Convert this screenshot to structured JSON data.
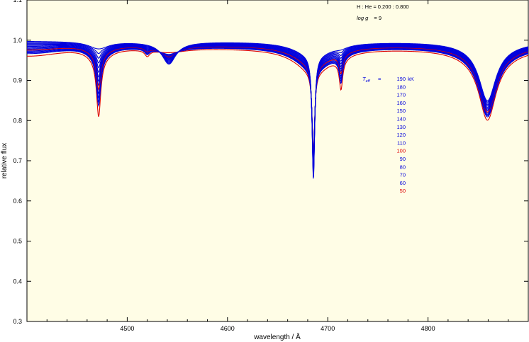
{
  "chart_data": {
    "type": "line",
    "xlabel": "wavelength / Å",
    "ylabel": "relative flux",
    "xlim": [
      4400,
      4900
    ],
    "ylim": [
      0.3,
      1.1
    ],
    "x_ticks": [
      4500,
      4600,
      4700,
      4800
    ],
    "y_ticks": [
      0.3,
      0.4,
      0.5,
      0.6,
      0.7,
      0.8,
      0.9,
      1.0,
      1.1
    ],
    "x_tick_labels": [
      "4500",
      "4600",
      "4700",
      "4800"
    ],
    "y_tick_labels": [
      "0.3",
      "0.4",
      "0.5",
      "0.6",
      "0.7",
      "0.8",
      "0.9",
      "1.0",
      "1.1"
    ],
    "grid": false,
    "background": "#fffde6",
    "annotations": {
      "composition": "H : He = 0.200 : 0.800",
      "logg_label": "log g",
      "logg_value": "= 9",
      "teff_label": "T",
      "teff_sub": "eff",
      "teff_eq": "="
    },
    "legend_placement": "right-center",
    "series": [
      {
        "name": "190 kK",
        "color": "#0000dd",
        "s": 1.0,
        "cont": 0.998
      },
      {
        "name": "180",
        "color": "#0000dd",
        "s": 0.93,
        "cont": 0.997
      },
      {
        "name": "170",
        "color": "#0000dd",
        "s": 0.86,
        "cont": 0.996
      },
      {
        "name": "160",
        "color": "#0000dd",
        "s": 0.79,
        "cont": 0.995
      },
      {
        "name": "150",
        "color": "#0000dd",
        "s": 0.72,
        "cont": 0.994
      },
      {
        "name": "140",
        "color": "#0000dd",
        "s": 0.65,
        "cont": 0.993
      },
      {
        "name": "130",
        "color": "#0000dd",
        "s": 0.58,
        "cont": 0.992
      },
      {
        "name": "120",
        "color": "#0000dd",
        "s": 0.52,
        "cont": 0.991
      },
      {
        "name": "110",
        "color": "#0000dd",
        "s": 0.46,
        "cont": 0.99
      },
      {
        "name": "100",
        "color": "#dd0000",
        "s": 0.4,
        "cont": 0.989
      },
      {
        "name": "90",
        "color": "#0000dd",
        "s": 0.34,
        "cont": 0.988
      },
      {
        "name": "80",
        "color": "#0000dd",
        "s": 0.28,
        "cont": 0.987
      },
      {
        "name": "70",
        "color": "#0000dd",
        "s": 0.22,
        "cont": 0.986
      },
      {
        "name": "60",
        "color": "#0000dd",
        "s": 0.16,
        "cont": 0.985
      },
      {
        "name": "50",
        "color": "#dd0000",
        "s": 0.0,
        "cont": 0.982
      }
    ],
    "lines": [
      {
        "center": 4685.7,
        "depth_hot": 0.31,
        "depth_cool": 0.2,
        "width": 1.5,
        "wing": 22,
        "wing_depth": 0.06
      },
      {
        "center": 4859.3,
        "depth_hot": 0.13,
        "depth_cool": 0.15,
        "width": 10,
        "wing": 30,
        "wing_depth": 0.03
      },
      {
        "center": 4541.6,
        "depth_hot": 0.05,
        "depth_cool": 0.0,
        "width": 8,
        "wing": 20,
        "wing_depth": 0.01
      },
      {
        "center": 4471.5,
        "depth_hot": 0.0,
        "depth_cool": 0.14,
        "width": 2.5,
        "wing": 12,
        "wing_depth": 0.03
      },
      {
        "center": 4713.2,
        "depth_hot": 0.0,
        "depth_cool": 0.07,
        "width": 2.0,
        "wing": 8,
        "wing_depth": 0.01
      },
      {
        "center": 4520.0,
        "depth_hot": 0.0,
        "depth_cool": 0.015,
        "width": 3,
        "wing": 5,
        "wing_depth": 0.0
      }
    ]
  }
}
